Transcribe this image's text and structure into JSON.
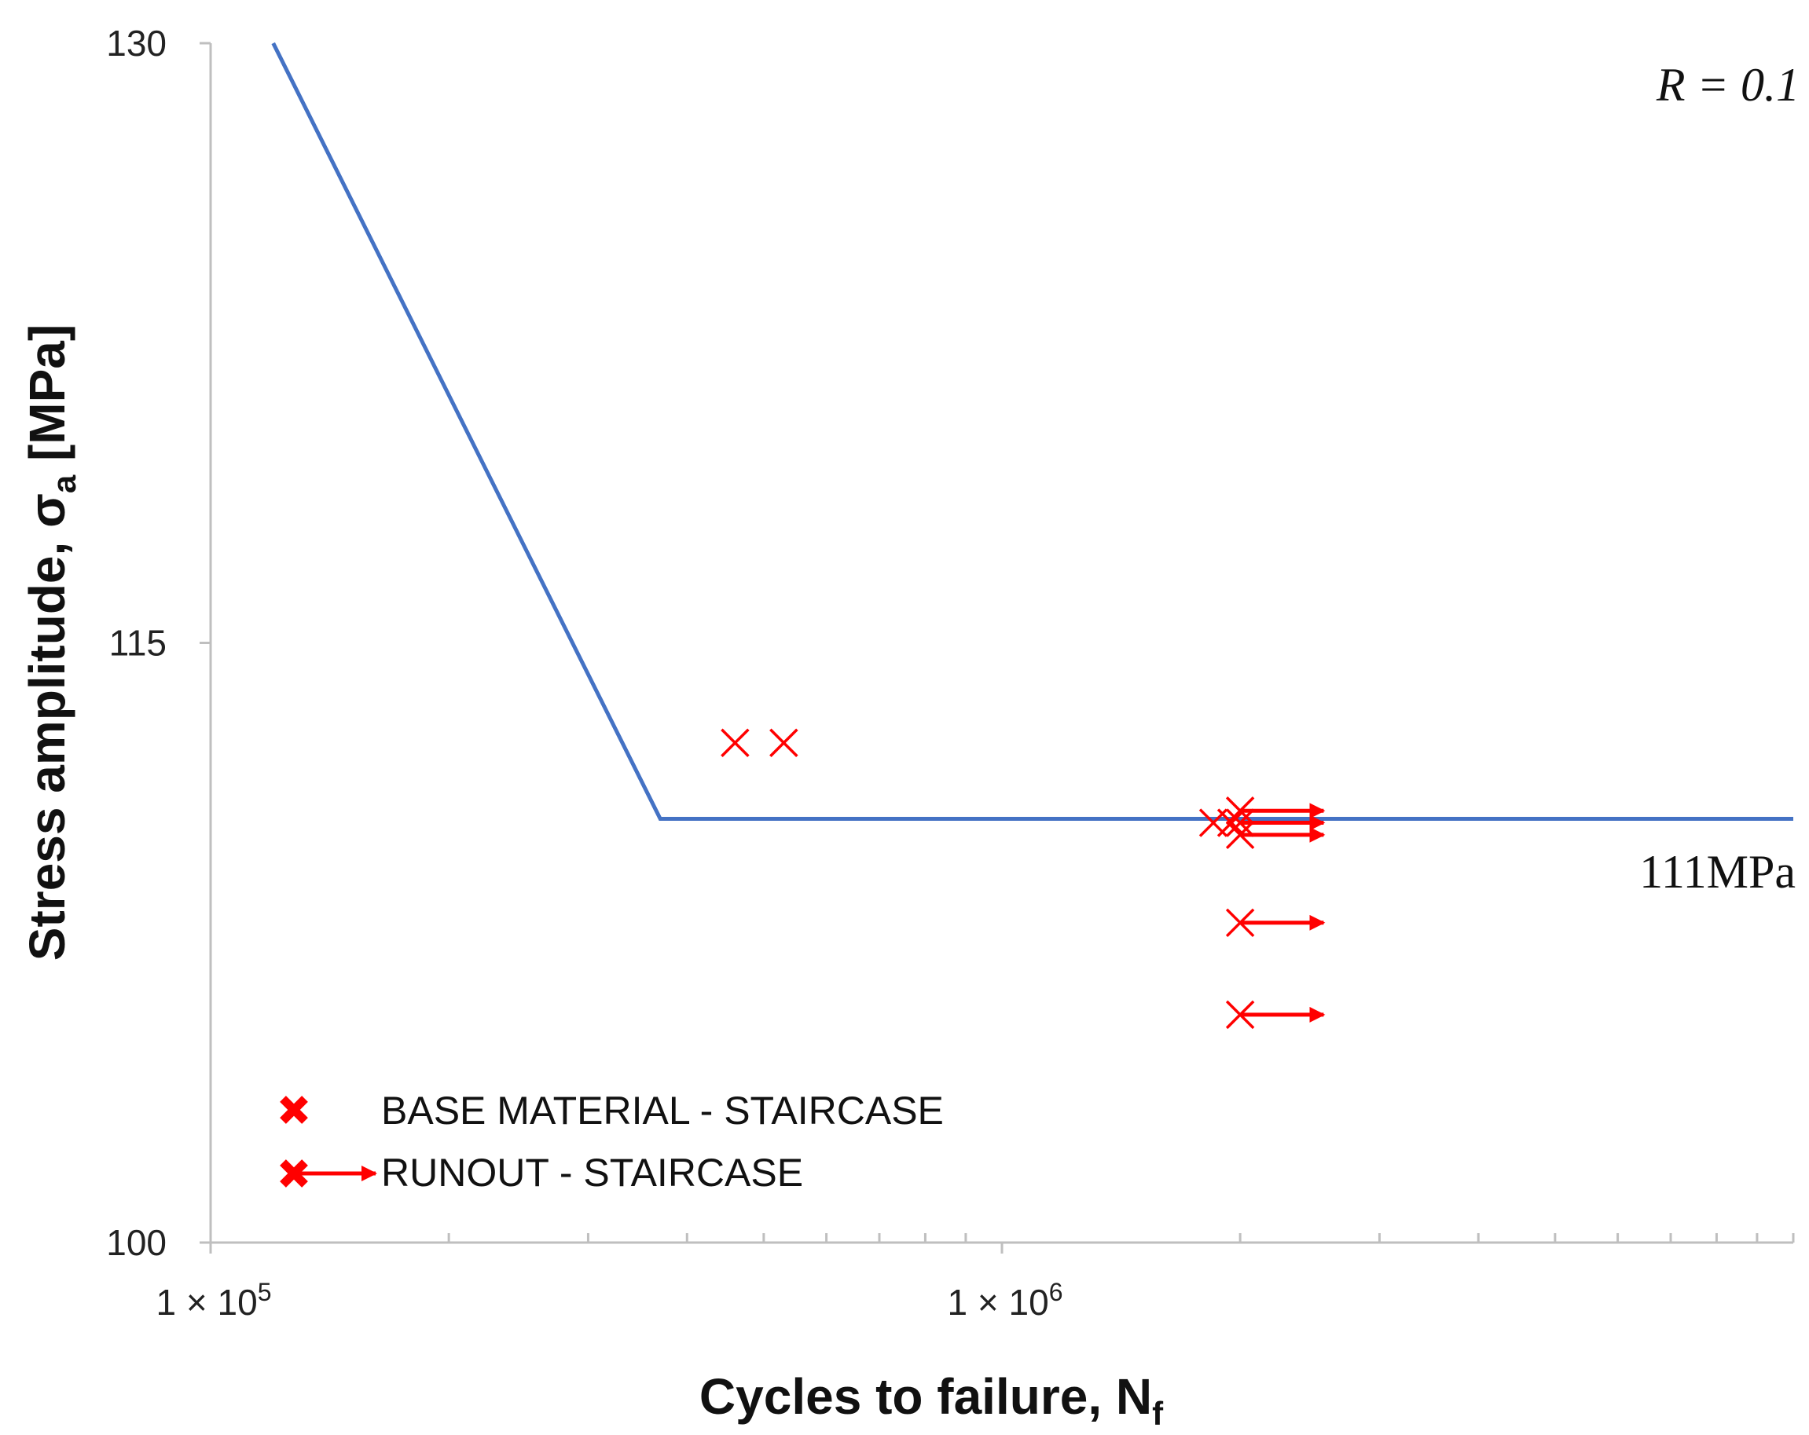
{
  "chart_data": {
    "type": "scatter",
    "title": "",
    "xlabel_main": "Cycles to failure, N",
    "xlabel_sub": "f",
    "ylabel_main": "Stress amplitude, σ",
    "ylabel_sub": "a",
    "ylabel_unit": " [MPa]",
    "x_scale": "log",
    "xlim": [
      100000,
      10000000
    ],
    "ylim": [
      100,
      130
    ],
    "y_ticks": [
      {
        "value": 130,
        "label": "130"
      },
      {
        "value": 115,
        "label": "115"
      },
      {
        "value": 100,
        "label": "100"
      }
    ],
    "x_major_ticks": [
      {
        "value": 100000,
        "label_base": "1 × 10",
        "label_exp": "5"
      },
      {
        "value": 1000000,
        "label_base": "1 × 10",
        "label_exp": "6"
      }
    ],
    "x_minor_ticks": [
      200000,
      300000,
      400000,
      500000,
      600000,
      700000,
      800000,
      900000,
      2000000,
      3000000,
      4000000,
      5000000,
      6000000,
      7000000,
      8000000,
      9000000,
      10000000
    ],
    "sn_curve": {
      "name": "S-N curve",
      "color": "#4472c4",
      "x": [
        120000,
        370000,
        10000000
      ],
      "y": [
        130,
        110.6,
        110.6
      ]
    },
    "series": [
      {
        "name": "BASE MATERIAL - STAIRCASE",
        "marker": "x",
        "color": "#ff0000",
        "points": [
          {
            "x": 460000,
            "y": 112.5
          },
          {
            "x": 530000,
            "y": 112.5
          },
          {
            "x": 1850000,
            "y": 110.5
          },
          {
            "x": 1950000,
            "y": 110.5
          }
        ]
      },
      {
        "name": "RUNOUT - STAIRCASE",
        "marker": "x-arrow",
        "color": "#ff0000",
        "points": [
          {
            "x": 2000000,
            "y": 110.8,
            "arrow_to": 2550000
          },
          {
            "x": 2000000,
            "y": 110.5,
            "arrow_to": 2550000
          },
          {
            "x": 2000000,
            "y": 110.2,
            "arrow_to": 2550000
          },
          {
            "x": 2000000,
            "y": 108.0,
            "arrow_to": 2550000
          },
          {
            "x": 2000000,
            "y": 105.7,
            "arrow_to": 2550000
          }
        ]
      }
    ],
    "annotations": [
      {
        "name": "ratio",
        "text": "R = 0.1"
      },
      {
        "name": "fatigue-limit",
        "text": "111MPa"
      }
    ],
    "legend_position": "bottom-left",
    "grid": false
  }
}
